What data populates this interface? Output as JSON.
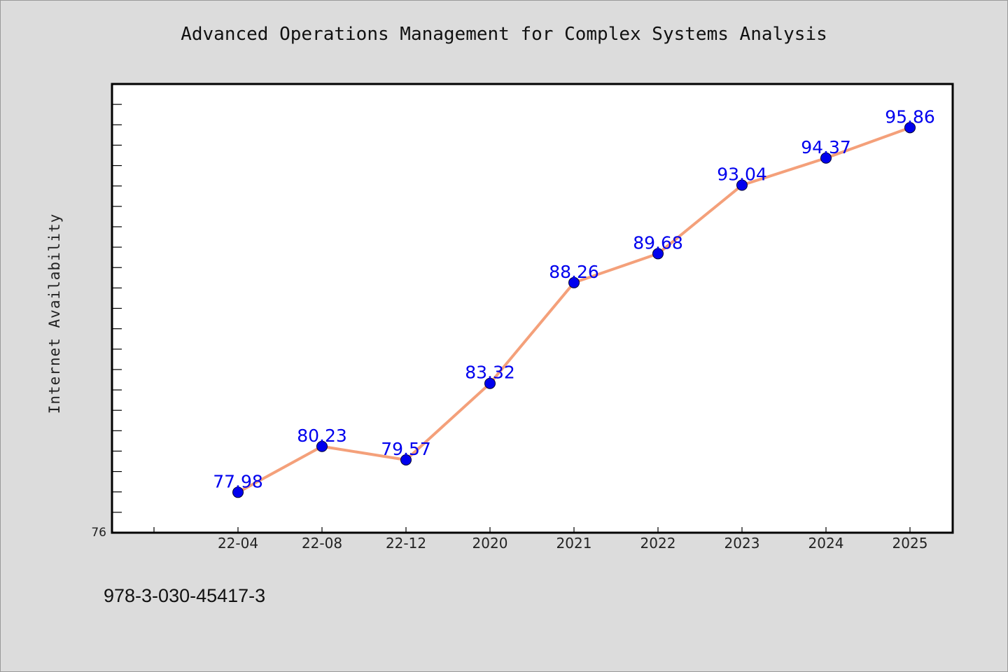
{
  "chart_data": {
    "type": "line",
    "title": "Advanced Operations Management for Complex Systems Analysis",
    "xlabel": "",
    "ylabel": "Internet Availability",
    "categories": [
      "22-04",
      "22-08",
      "22-12",
      "2020",
      "2021",
      "2022",
      "2023",
      "2024",
      "2025"
    ],
    "values": [
      77.98,
      80.23,
      79.57,
      83.32,
      88.26,
      89.68,
      93.04,
      94.37,
      95.86
    ],
    "data_labels": [
      "77.98",
      "80.23",
      "79.57",
      "83.32",
      "88.26",
      "89.68",
      "93.04",
      "94.37",
      "95.86"
    ],
    "ylim": [
      76,
      98
    ],
    "y_tick_labels": [
      "76"
    ],
    "grid": false,
    "legend": "none",
    "colors": {
      "line": "#f4a07a",
      "marker": "#0000ee",
      "data_label": "#0000ee",
      "plot_bg": "#ffffff",
      "page_bg": "#dcdcdc"
    }
  },
  "footer": {
    "isbn": "978-3-030-45417-3"
  }
}
